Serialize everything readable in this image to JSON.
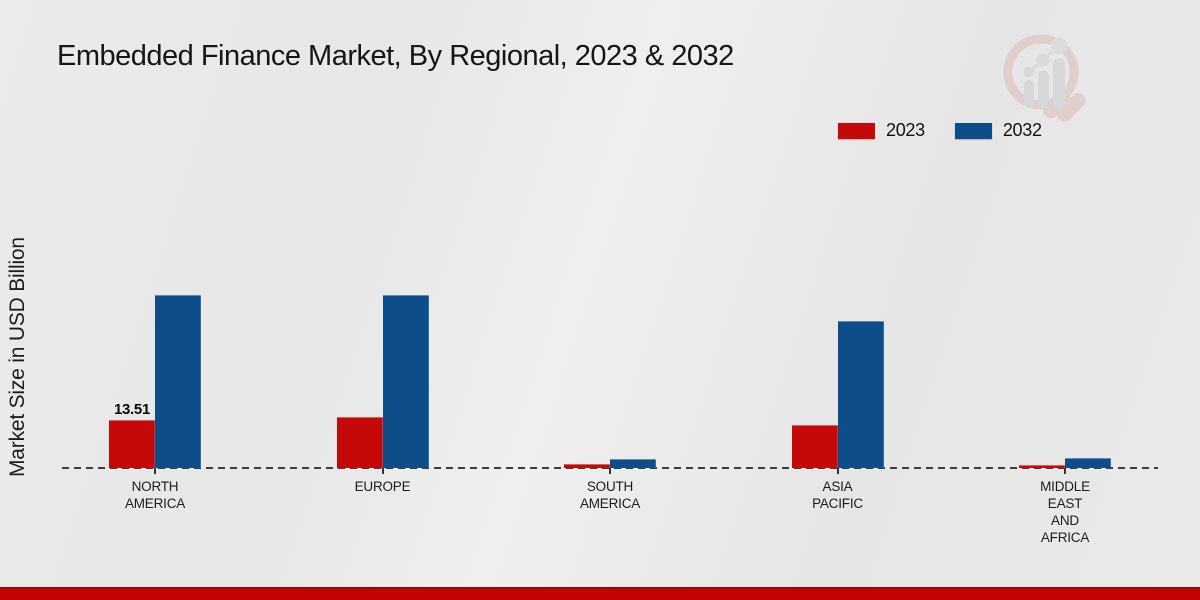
{
  "colors": {
    "background": "#e9e9e9",
    "series_2023": "#c50808",
    "series_2032": "#0d4d8a",
    "baseline": "#3d3d3d",
    "footer_band": "#c40404"
  },
  "watermark_icon": "magnifier-bar-chart-logo",
  "chart_data": {
    "type": "bar",
    "title": "Embedded Finance Market, By Regional, 2023 & 2032",
    "xlabel": "",
    "ylabel": "Market Size in USD Billion",
    "categories": [
      "NORTH AMERICA",
      "EUROPE",
      "SOUTH AMERICA",
      "ASIA PACIFIC",
      "MIDDLE EAST AND AFRICA"
    ],
    "category_label_lines": [
      [
        "NORTH",
        "AMERICA"
      ],
      [
        "EUROPE"
      ],
      [
        "SOUTH",
        "AMERICA"
      ],
      [
        "ASIA",
        "PACIFIC"
      ],
      [
        "MIDDLE",
        "EAST",
        "AND",
        "AFRICA"
      ]
    ],
    "series": [
      {
        "name": "2023",
        "color": "#c50808",
        "values": [
          13.51,
          14.35,
          1.2,
          12.1,
          0.85
        ]
      },
      {
        "name": "2032",
        "color": "#0d4d8a",
        "values": [
          48.7,
          48.7,
          2.6,
          41.4,
          2.9
        ]
      }
    ],
    "value_labels": [
      {
        "series": "2023",
        "category": "NORTH AMERICA",
        "text": "13.51"
      }
    ],
    "ylim": [
      0,
      55
    ],
    "grid": false,
    "legend_position": "top-right",
    "axis_style": "dashed-baseline-only"
  }
}
